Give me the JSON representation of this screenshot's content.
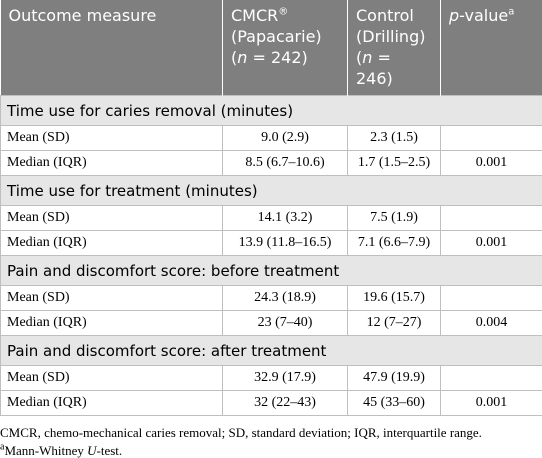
{
  "header": {
    "col1": "Outcome measure",
    "col2": {
      "name": "CMCR",
      "sup": "®",
      "group": "(Papacarie)",
      "pre": "(",
      "n": "n",
      "post": " = 242)"
    },
    "col3": {
      "name": "Control",
      "group": "(Drilling)",
      "pre": "(",
      "n": "n",
      "post": " = 246)"
    },
    "col4": {
      "name": "p",
      "rest": "-value",
      "sup": "a"
    }
  },
  "sections": [
    {
      "title": "Time use for caries removal (minutes)",
      "rows": [
        {
          "label": "Mean (SD)",
          "cmcr": "9.0 (2.9)",
          "control": "2.3 (1.5)"
        },
        {
          "label": "Median (IQR)",
          "cmcr": "8.5 (6.7–10.6)",
          "control": "1.7 (1.5–2.5)",
          "p_value": "0.001"
        }
      ]
    },
    {
      "title": "Time use for treatment (minutes)",
      "rows": [
        {
          "label": "Mean (SD)",
          "cmcr": "14.1 (3.2)",
          "control": "7.5 (1.9)"
        },
        {
          "label": "Median (IQR)",
          "cmcr": "13.9 (11.8–16.5)",
          "control": "7.1 (6.6–7.9)",
          "p_value": "0.001"
        }
      ]
    },
    {
      "title": "Pain and discomfort score: before treatment",
      "rows": [
        {
          "label": "Mean (SD)",
          "cmcr": "24.3 (18.9)",
          "control": "19.6 (15.7)"
        },
        {
          "label": "Median (IQR)",
          "cmcr": "23 (7–40)",
          "control": "12 (7–27)",
          "p_value": "0.004"
        }
      ]
    },
    {
      "title": "Pain and discomfort score: after treatment",
      "rows": [
        {
          "label": "Mean (SD)",
          "cmcr": "32.9 (17.9)",
          "control": "47.9 (19.9)"
        },
        {
          "label": "Median (IQR)",
          "cmcr": "32 (22–43)",
          "control": "45 (33–60)",
          "p_value": "0.001"
        }
      ]
    }
  ],
  "footnotes": {
    "line1": "CMCR, chemo-mechanical caries removal; SD, standard deviation; IQR, interquartile range.",
    "line2": {
      "sup": "a",
      "pre": "Mann-Whitney ",
      "italic": "U",
      "post": "-test."
    }
  }
}
